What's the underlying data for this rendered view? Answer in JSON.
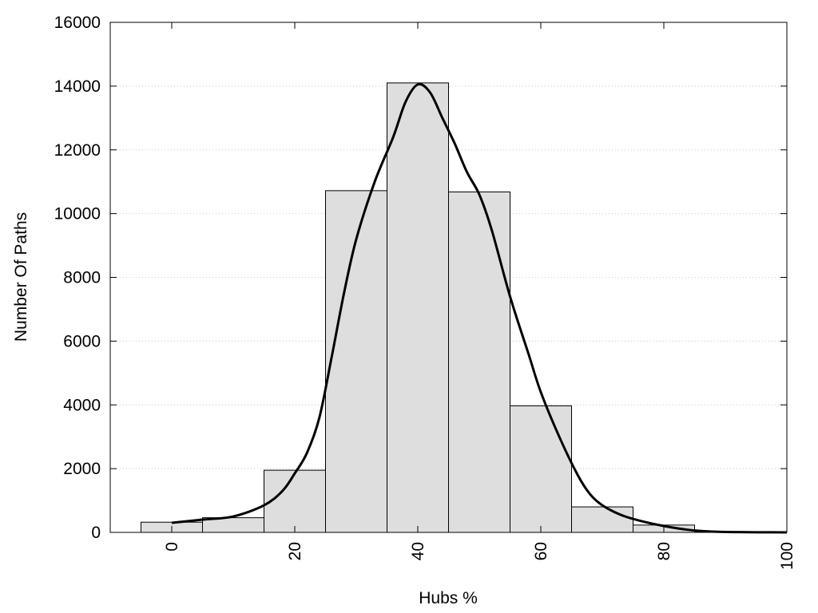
{
  "chart_data": {
    "type": "bar",
    "title": "",
    "xlabel": "Hubs %",
    "ylabel": "Number Of Paths",
    "xlim": [
      -10,
      100
    ],
    "ylim": [
      0,
      16000
    ],
    "x_ticks": [
      0,
      20,
      40,
      60,
      80,
      100
    ],
    "y_ticks": [
      0,
      2000,
      4000,
      6000,
      8000,
      10000,
      12000,
      14000,
      16000
    ],
    "grid": "horizontal-dotted",
    "legend": "none",
    "bar_width": 10,
    "bars": [
      {
        "x": 0,
        "value": 320
      },
      {
        "x": 10,
        "value": 460
      },
      {
        "x": 20,
        "value": 1950
      },
      {
        "x": 30,
        "value": 10720
      },
      {
        "x": 40,
        "value": 14100
      },
      {
        "x": 50,
        "value": 10680
      },
      {
        "x": 60,
        "value": 3970
      },
      {
        "x": 70,
        "value": 800
      },
      {
        "x": 80,
        "value": 230
      },
      {
        "x": 90,
        "value": 15
      },
      {
        "x": 100,
        "value": 3
      }
    ],
    "curve": {
      "x": [
        0,
        5,
        10,
        15,
        18,
        20,
        22,
        24,
        26,
        28,
        30,
        33,
        36,
        38,
        40,
        42,
        44,
        46,
        48,
        50,
        52,
        55,
        58,
        60,
        63,
        66,
        68,
        70,
        73,
        76,
        80,
        84,
        88,
        92,
        96,
        100
      ],
      "y": [
        300,
        400,
        500,
        850,
        1300,
        1850,
        2500,
        3600,
        5500,
        7500,
        9200,
        11000,
        12400,
        13500,
        14050,
        13800,
        13000,
        12200,
        11300,
        10600,
        9500,
        7400,
        5600,
        4400,
        3000,
        1800,
        1200,
        850,
        550,
        370,
        200,
        80,
        25,
        8,
        3,
        1
      ],
      "color": "#000000"
    },
    "colors": {
      "bar_fill": "#dedede",
      "bar_stroke": "#000000",
      "grid": "#c8c8c8"
    }
  }
}
